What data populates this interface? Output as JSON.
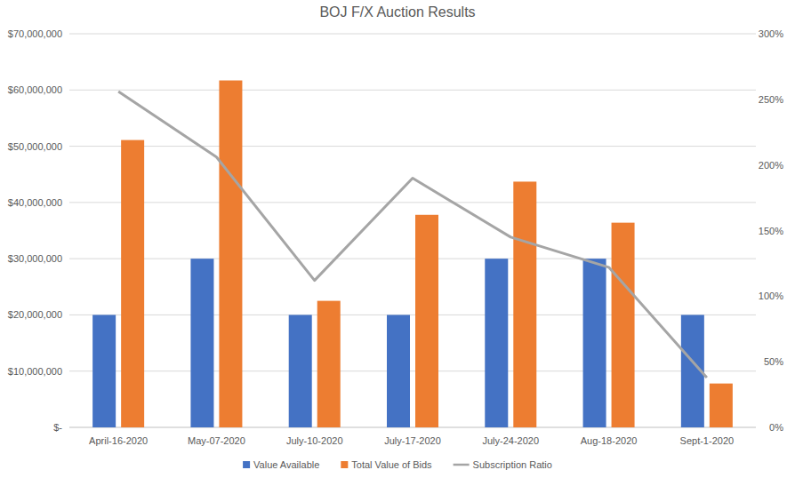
{
  "chart_data": {
    "type": "bar",
    "title": "BOJ F/X Auction Results",
    "categories": [
      "April-16-2020",
      "May-07-2020",
      "July-10-2020",
      "July-17-2020",
      "July-24-2020",
      "Aug-18-2020",
      "Sept-1-2020"
    ],
    "series": [
      {
        "name": "Value Available",
        "color": "#4472c4",
        "type": "bar",
        "values": [
          20000000,
          30000000,
          20000000,
          20000000,
          30000000,
          30000000,
          20000000
        ]
      },
      {
        "name": "Total Value of Bids",
        "color": "#ed7d31",
        "type": "bar",
        "values": [
          51100000,
          61700000,
          22500000,
          37800000,
          43700000,
          36400000,
          7800000
        ]
      },
      {
        "name": "Subscription Ratio",
        "color": "#a5a5a5",
        "type": "line",
        "axis": "y2",
        "values": [
          256,
          206,
          112,
          190,
          145,
          122,
          38
        ]
      }
    ],
    "ylim": [
      0,
      70000000
    ],
    "yticks": [
      {
        "value": 0,
        "label": "$-"
      },
      {
        "value": 10000000,
        "label": "$10,000,000"
      },
      {
        "value": 20000000,
        "label": "$20,000,000"
      },
      {
        "value": 30000000,
        "label": "$30,000,000"
      },
      {
        "value": 40000000,
        "label": "$40,000,000"
      },
      {
        "value": 50000000,
        "label": "$50,000,000"
      },
      {
        "value": 60000000,
        "label": "$60,000,000"
      },
      {
        "value": 70000000,
        "label": "$70,000,000"
      }
    ],
    "y2lim": [
      0,
      300
    ],
    "y2ticks": [
      {
        "value": 0,
        "label": "0%"
      },
      {
        "value": 50,
        "label": "50%"
      },
      {
        "value": 100,
        "label": "100%"
      },
      {
        "value": 150,
        "label": "150%"
      },
      {
        "value": 200,
        "label": "200%"
      },
      {
        "value": 250,
        "label": "250%"
      },
      {
        "value": 300,
        "label": "300%"
      }
    ],
    "grid": true,
    "legend": "bottom"
  }
}
